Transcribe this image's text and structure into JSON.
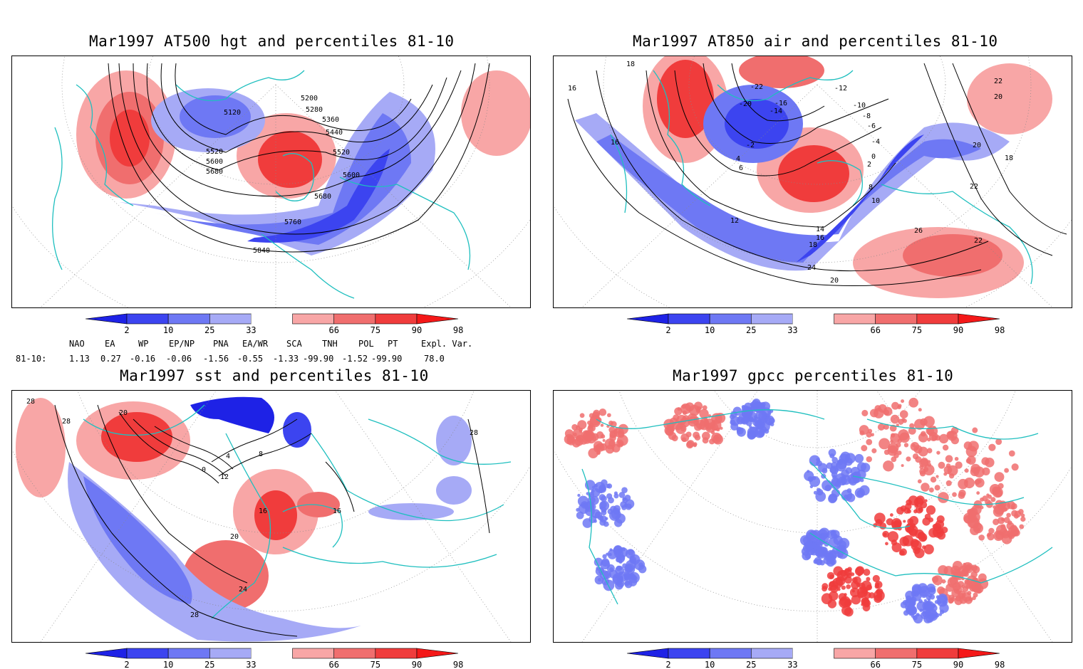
{
  "panels": [
    {
      "title": "Mar1997 AT500 hgt and percentiles 81-10",
      "contour_labels": [
        "5120",
        "5200",
        "5280",
        "5360",
        "5440",
        "5520",
        "5520",
        "5600",
        "5600",
        "5680",
        "5680",
        "5760",
        "5840"
      ]
    },
    {
      "title": "Mar1997 AT850 air and percentiles 81-10",
      "contour_labels": [
        "18",
        "16",
        "16",
        "-22",
        "-20",
        "-16",
        "-14",
        "-12",
        "-10",
        "-8",
        "-6",
        "-4",
        "-2",
        "0",
        "2",
        "4",
        "6",
        "8",
        "10",
        "12",
        "14",
        "16",
        "18",
        "20",
        "22",
        "24",
        "26",
        "22",
        "20",
        "22",
        "20",
        "18"
      ]
    },
    {
      "title": "Mar1997 sst and percentiles 81-10",
      "contour_labels": [
        "28",
        "28",
        "20",
        "0",
        "4",
        "8",
        "12",
        "16",
        "16",
        "20",
        "24",
        "28",
        "28"
      ]
    },
    {
      "title": "Mar1997 gpcc percentiles 81-10",
      "contour_labels": []
    }
  ],
  "colorbar": {
    "ticks": [
      "2",
      "10",
      "25",
      "33",
      "66",
      "75",
      "90",
      "98"
    ],
    "colors": [
      "#1e22e6",
      "#3c44f0",
      "#6e78f4",
      "#a6aaf6",
      "#ffffff",
      "#f8a6a6",
      "#f06e6e",
      "#f03c3c",
      "#f41818"
    ]
  },
  "indices": {
    "headers": [
      "NAO",
      "EA",
      "WP",
      "EP/NP",
      "PNA",
      "EA/WR",
      "SCA",
      "TNH",
      "POL",
      "PT",
      "Expl. Var."
    ],
    "row_label": "81-10:",
    "values": [
      "1.13",
      "0.27",
      "-0.16",
      "-0.06",
      "-1.56",
      "-0.55",
      "-1.33",
      "-99.90",
      "-1.52",
      "-99.90",
      "78.0"
    ]
  }
}
